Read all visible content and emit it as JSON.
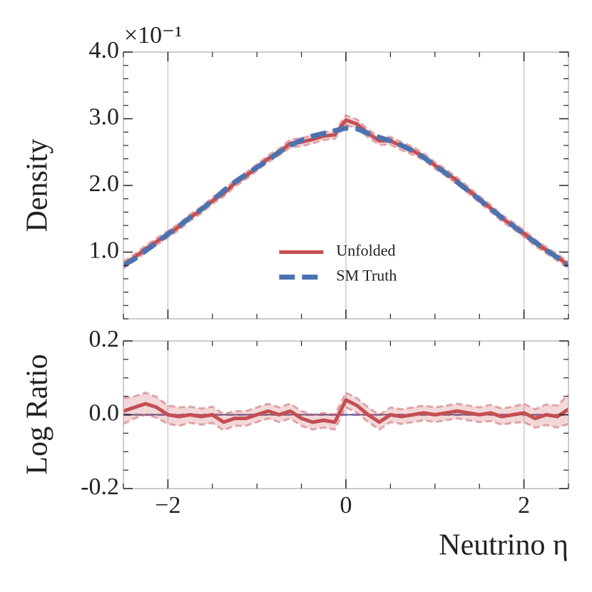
{
  "chart_data": [
    {
      "type": "line",
      "ylabel": "Density",
      "y_offset_label": "×10⁻¹",
      "x": [
        -2.5,
        -2.375,
        -2.25,
        -2.125,
        -2.0,
        -1.875,
        -1.75,
        -1.625,
        -1.5,
        -1.375,
        -1.25,
        -1.125,
        -1.0,
        -0.875,
        -0.75,
        -0.625,
        -0.5,
        -0.375,
        -0.25,
        -0.125,
        0,
        0.125,
        0.25,
        0.375,
        0.5,
        0.625,
        0.75,
        0.875,
        1.0,
        1.125,
        1.25,
        1.375,
        1.5,
        1.625,
        1.75,
        1.875,
        2.0,
        2.125,
        2.25,
        2.375,
        2.5
      ],
      "series": [
        {
          "name": "Unfolded",
          "color": "#c44e52",
          "dash": false,
          "values": [
            0.81,
            0.92,
            1.05,
            1.16,
            1.27,
            1.38,
            1.52,
            1.63,
            1.77,
            1.88,
            2.03,
            2.14,
            2.27,
            2.4,
            2.5,
            2.63,
            2.65,
            2.69,
            2.74,
            2.76,
            2.98,
            2.92,
            2.78,
            2.67,
            2.67,
            2.59,
            2.52,
            2.43,
            2.3,
            2.19,
            2.07,
            1.93,
            1.79,
            1.66,
            1.51,
            1.4,
            1.28,
            1.14,
            1.03,
            0.92,
            0.81
          ],
          "errors": [
            0.05,
            0.05,
            0.05,
            0.05,
            0.05,
            0.05,
            0.05,
            0.05,
            0.05,
            0.05,
            0.05,
            0.05,
            0.05,
            0.05,
            0.05,
            0.06,
            0.06,
            0.06,
            0.06,
            0.06,
            0.07,
            0.07,
            0.06,
            0.06,
            0.06,
            0.06,
            0.06,
            0.05,
            0.05,
            0.05,
            0.05,
            0.05,
            0.05,
            0.05,
            0.05,
            0.05,
            0.05,
            0.05,
            0.05,
            0.05,
            0.05
          ]
        },
        {
          "name": "SM Truth",
          "color": "#4c72b0",
          "dash": true,
          "values": [
            0.8,
            0.9,
            1.02,
            1.14,
            1.27,
            1.39,
            1.52,
            1.64,
            1.77,
            1.92,
            2.05,
            2.16,
            2.27,
            2.38,
            2.5,
            2.6,
            2.68,
            2.74,
            2.78,
            2.82,
            2.86,
            2.85,
            2.78,
            2.72,
            2.67,
            2.6,
            2.52,
            2.42,
            2.3,
            2.18,
            2.05,
            1.92,
            1.79,
            1.65,
            1.52,
            1.4,
            1.27,
            1.15,
            1.03,
            0.92,
            0.8
          ]
        }
      ],
      "xlim": [
        -2.5,
        2.5
      ],
      "xticks": [
        {
          "value": -2,
          "label": "−2"
        },
        0,
        2
      ],
      "show_xtick_labels": false,
      "ylim": [
        0,
        4.0
      ],
      "yticks": [
        {
          "value": 1,
          "label": "1.0"
        },
        {
          "value": 2,
          "label": "2.0"
        },
        {
          "value": 3,
          "label": "3.0"
        },
        {
          "value": 4,
          "label": "4.0"
        }
      ],
      "grid": "x",
      "legend": "lower center"
    },
    {
      "type": "line",
      "ylabel": "Log Ratio",
      "xlabel": "Neutrino η",
      "x": [
        -2.5,
        -2.375,
        -2.25,
        -2.125,
        -2.0,
        -1.875,
        -1.75,
        -1.625,
        -1.5,
        -1.375,
        -1.25,
        -1.125,
        -1.0,
        -0.875,
        -0.75,
        -0.625,
        -0.5,
        -0.375,
        -0.25,
        -0.125,
        0,
        0.125,
        0.25,
        0.375,
        0.5,
        0.625,
        0.75,
        0.875,
        1.0,
        1.125,
        1.25,
        1.375,
        1.5,
        1.625,
        1.75,
        1.875,
        2.0,
        2.125,
        2.25,
        2.375,
        2.5
      ],
      "series": [
        {
          "color": "#c44e52",
          "dash": false,
          "values": [
            0.01,
            0.02,
            0.03,
            0.02,
            0.0,
            -0.005,
            0.0,
            -0.005,
            0.0,
            -0.02,
            -0.01,
            -0.01,
            0.0,
            0.01,
            0.0,
            0.01,
            -0.01,
            -0.02,
            -0.015,
            -0.02,
            0.04,
            0.025,
            0.0,
            -0.02,
            0.0,
            -0.005,
            0.0,
            0.005,
            0.0,
            0.005,
            0.01,
            0.005,
            0.0,
            0.005,
            -0.005,
            0.0,
            0.005,
            -0.01,
            0.0,
            -0.005,
            0.015
          ],
          "errors": [
            0.035,
            0.03,
            0.03,
            0.028,
            0.025,
            0.025,
            0.022,
            0.022,
            0.022,
            0.022,
            0.02,
            0.02,
            0.02,
            0.02,
            0.02,
            0.02,
            0.02,
            0.02,
            0.02,
            0.02,
            0.02,
            0.02,
            0.02,
            0.02,
            0.02,
            0.02,
            0.02,
            0.02,
            0.02,
            0.02,
            0.02,
            0.02,
            0.02,
            0.022,
            0.022,
            0.022,
            0.025,
            0.025,
            0.028,
            0.03,
            0.04
          ]
        }
      ],
      "reference_line": {
        "value": 0,
        "color": "#8172b3"
      },
      "xlim": [
        -2.5,
        2.5
      ],
      "xticks": [
        {
          "value": -2,
          "label": "−2"
        },
        0,
        2
      ],
      "show_xtick_labels": true,
      "ylim": [
        -0.2,
        0.2
      ],
      "yticks": [
        {
          "value": -0.2,
          "label": "-0.2"
        },
        {
          "value": 0,
          "label": "0.0"
        },
        0.2
      ],
      "grid": "x"
    }
  ]
}
